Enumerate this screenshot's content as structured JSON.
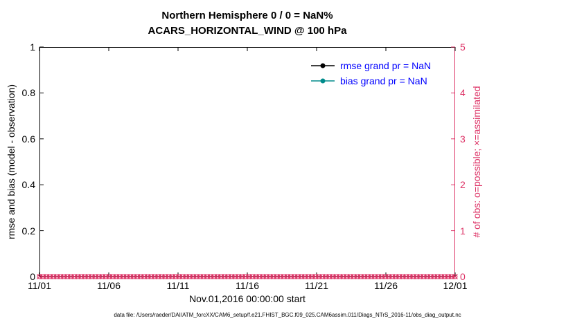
{
  "title": {
    "line1": "Northern Hemisphere 0 / 0 = NaN%",
    "line2": "ACARS_HORIZONTAL_WIND @ 100 hPa"
  },
  "axes": {
    "left": {
      "label": "rmse and bias (model - observation)",
      "ticks": [
        "0",
        "0.2",
        "0.4",
        "0.6",
        "0.8",
        "1"
      ]
    },
    "right": {
      "label": "# of obs: o=possible; ×=assimilated",
      "ticks": [
        "0",
        "1",
        "2",
        "3",
        "4",
        "5"
      ]
    },
    "x": {
      "label": "Nov.01,2016 00:00:00 start",
      "ticks": [
        "11/01",
        "11/06",
        "11/11",
        "11/16",
        "11/21",
        "11/26",
        "12/01"
      ]
    }
  },
  "legend": {
    "items": [
      {
        "label": "rmse grand pr = NaN",
        "color": "#000000"
      },
      {
        "label": "bias grand pr = NaN",
        "color": "#008b8b"
      }
    ]
  },
  "colors": {
    "left_axis": "#000000",
    "right_axis": "#dd3366",
    "legend_text": "#0000ff",
    "rmse": "#000000",
    "bias": "#008b8b"
  },
  "footer": "data file: /Users/raeder/DAI/ATM_forcXX/CAM6_setup/f.e21.FHIST_BGC.f09_025.CAM6assim.011/Diags_NTrS_2016-11/obs_diag_output.nc",
  "chart_data": {
    "type": "line",
    "title": "Northern Hemisphere 0 / 0 = NaN%",
    "subtitle": "ACARS_HORIZONTAL_WIND @ 100 hPa",
    "xlabel": "Nov.01,2016 00:00:00 start",
    "x_tick_labels": [
      "11/01",
      "11/06",
      "11/11",
      "11/16",
      "11/21",
      "11/26",
      "12/01"
    ],
    "left_axis": {
      "label": "rmse and bias (model - observation)",
      "range": [
        0,
        1
      ],
      "ticks": [
        0,
        0.2,
        0.4,
        0.6,
        0.8,
        1
      ]
    },
    "right_axis": {
      "label": "# of obs: o=possible; ×=assimilated",
      "range": [
        0,
        5
      ],
      "ticks": [
        0,
        1,
        2,
        3,
        4,
        5
      ]
    },
    "grid": false,
    "legend_position": "upper right inside",
    "series": [
      {
        "name": "rmse grand pr = NaN",
        "axis": "left",
        "color": "#000000",
        "marker": "o",
        "values": [],
        "all_nan": true
      },
      {
        "name": "bias grand pr = NaN",
        "axis": "left",
        "color": "#008b8b",
        "marker": "o",
        "values": [],
        "all_nan": true
      },
      {
        "name": "possible obs (o)",
        "axis": "right",
        "color": "#dd3366",
        "marker": "o",
        "constant_value": 0,
        "n_points": 120
      },
      {
        "name": "assimilated obs (x)",
        "axis": "right",
        "color": "#dd3366",
        "marker": "x",
        "constant_value": 0,
        "n_points": 120
      }
    ]
  }
}
